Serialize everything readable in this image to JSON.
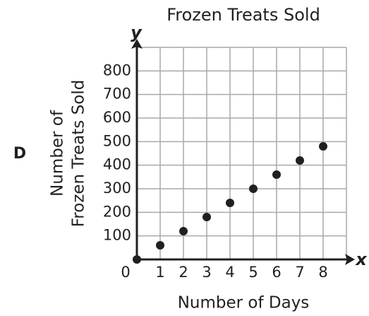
{
  "chart_data": {
    "type": "scatter",
    "title": "Frozen Treats Sold",
    "xlabel": "Number of Days",
    "ylabel": [
      "Number of",
      "Frozen Treats Sold"
    ],
    "axis_letters": {
      "x": "x",
      "y": "y"
    },
    "option_label": "D",
    "x": [
      0,
      1,
      2,
      3,
      4,
      5,
      6,
      7,
      8
    ],
    "values": [
      0,
      60,
      120,
      180,
      240,
      300,
      360,
      420,
      480
    ],
    "color": "#231f20",
    "xlim": [
      0,
      9
    ],
    "ylim": [
      0,
      900
    ],
    "xticks": [
      0,
      1,
      2,
      3,
      4,
      5,
      6,
      7,
      8
    ],
    "yticks": [
      100,
      200,
      300,
      400,
      500,
      600,
      700,
      800
    ],
    "grid": true
  }
}
